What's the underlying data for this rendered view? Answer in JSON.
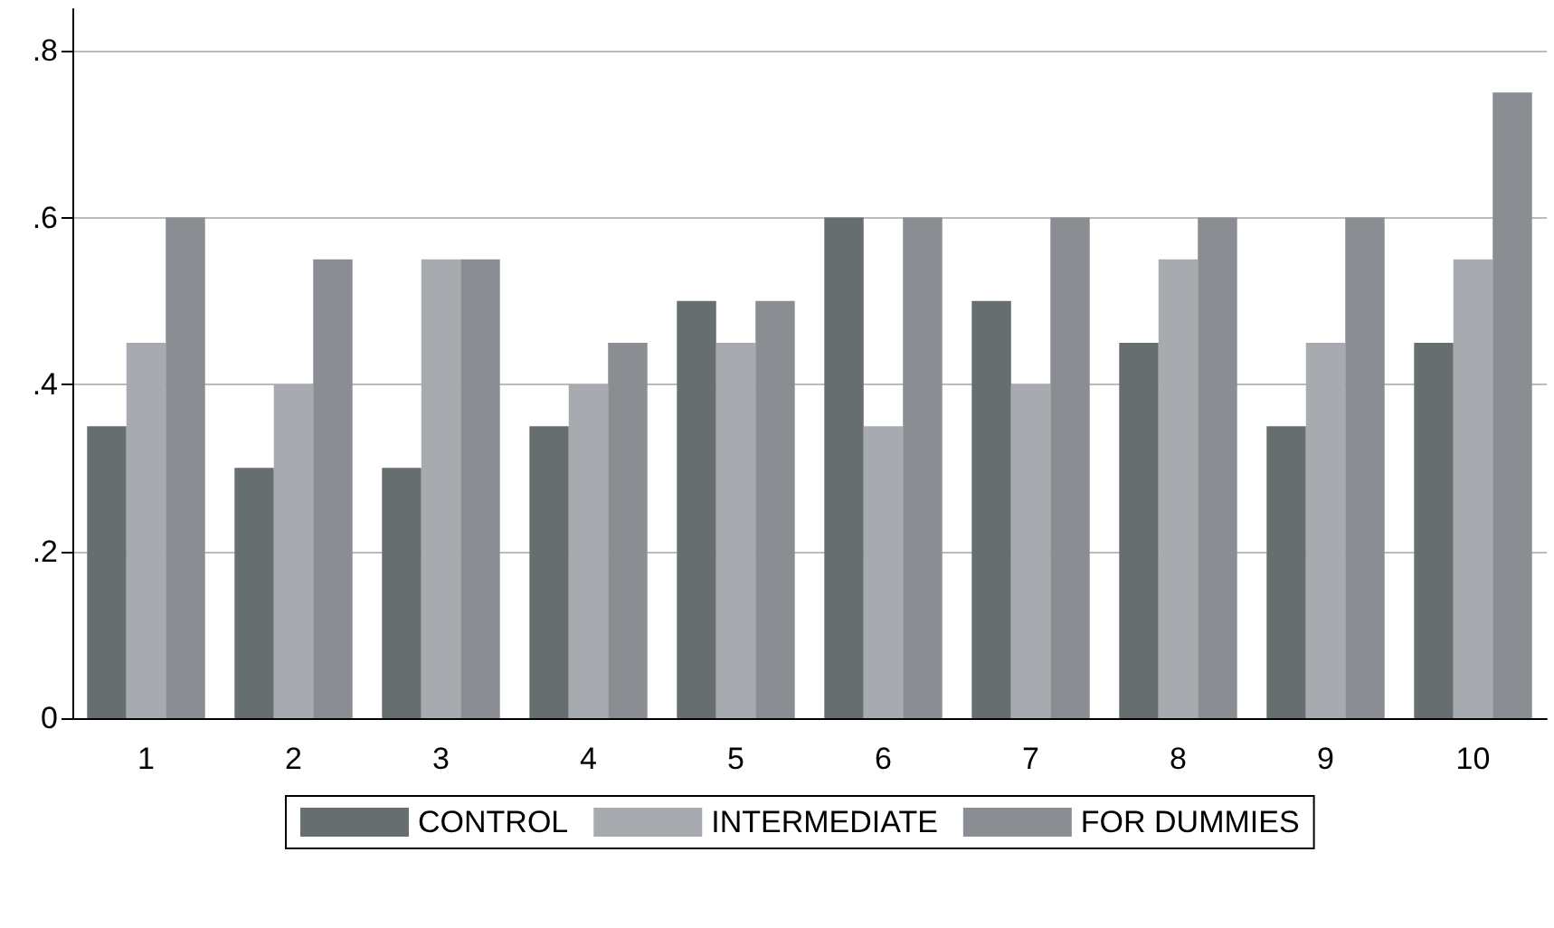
{
  "chart_data": {
    "type": "bar",
    "categories": [
      "1",
      "2",
      "3",
      "4",
      "5",
      "6",
      "7",
      "8",
      "9",
      "10"
    ],
    "series": [
      {
        "name": "CONTROL",
        "color": "#676e6f",
        "values": [
          0.35,
          0.3,
          0.3,
          0.35,
          0.5,
          0.6,
          0.5,
          0.45,
          0.35,
          0.45
        ]
      },
      {
        "name": "INTERMEDIATE",
        "color": "#a7aaae",
        "values": [
          0.45,
          0.4,
          0.55,
          0.4,
          0.45,
          0.35,
          0.4,
          0.55,
          0.45,
          0.55
        ]
      },
      {
        "name": "FOR DUMMIES",
        "color": "#8a8e92",
        "values": [
          0.6,
          0.55,
          0.55,
          0.45,
          0.5,
          0.6,
          0.6,
          0.6,
          0.6,
          0.75
        ]
      }
    ],
    "ylim": [
      0,
      0.85
    ],
    "yticks": [
      0,
      {
        "value": 0.2,
        "label": ".2"
      },
      {
        "value": 0.4,
        "label": ".4"
      },
      {
        "value": 0.6,
        "label": ".6"
      },
      {
        "value": 0.8,
        "label": ".8"
      }
    ],
    "grid": "y",
    "legend": "bottom"
  }
}
